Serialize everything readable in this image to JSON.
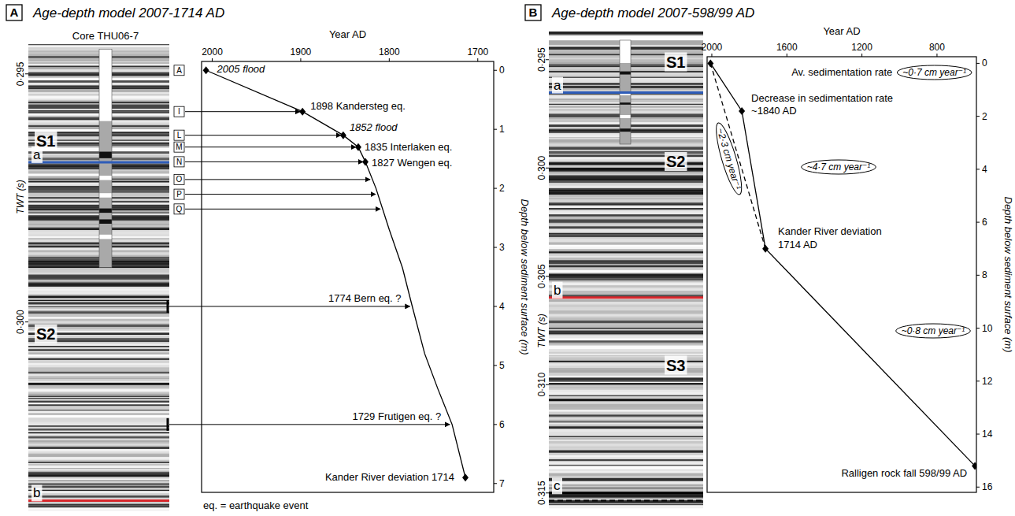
{
  "chart_data": [
    {
      "type": "line",
      "panel_label": "A",
      "title": "Age-depth model 2007-1714 AD",
      "x_label": "Year AD",
      "y_label": "Depth below sediment surface (m)",
      "xlim": [
        2012,
        1682
      ],
      "xticks": [
        2000,
        1900,
        1800,
        1700
      ],
      "ylim": [
        -0.15,
        7.15
      ],
      "yticks": [
        0,
        1,
        2,
        3,
        4,
        5,
        6,
        7
      ],
      "series": [
        {
          "type": "line",
          "color": "#000000",
          "line_style": "solid",
          "x": [
            2007,
            1898,
            1852,
            1835,
            1827,
            1815,
            1800,
            1785,
            1774,
            1760,
            1745,
            1729,
            1714
          ],
          "values": [
            0,
            0.7,
            1.1,
            1.3,
            1.55,
            2.0,
            2.7,
            3.35,
            4.0,
            4.8,
            5.4,
            6.0,
            6.9
          ]
        },
        {
          "type": "scatter",
          "color": "#000000",
          "marker": "diamond",
          "x": [
            2007,
            1898,
            1852,
            1835,
            1827,
            1714
          ],
          "values": [
            0,
            0.7,
            1.1,
            1.3,
            1.55,
            6.9
          ]
        }
      ],
      "annotations": [
        {
          "lines": [
            "2005 flood"
          ],
          "x": 2007,
          "y": 0,
          "italic": true
        },
        {
          "lines": [
            "1898 Kandersteg eq."
          ],
          "x": 1898,
          "y": 0.7
        },
        {
          "lines": [
            "1852 flood"
          ],
          "x": 1852,
          "y": 1.1,
          "italic": true
        },
        {
          "lines": [
            "1835 Interlaken eq."
          ],
          "x": 1835,
          "y": 1.3
        },
        {
          "lines": [
            "1827 Wengen eq."
          ],
          "x": 1827,
          "y": 1.55
        },
        {
          "lines": [
            "1774 Bern eq. ?"
          ],
          "x": 1774,
          "y": 4.0
        },
        {
          "lines": [
            "1729 Frutigen eq. ?"
          ],
          "x": 1729,
          "y": 6.0
        },
        {
          "lines": [
            "Kander River deviation 1714"
          ],
          "x": 1714,
          "y": 6.9
        }
      ],
      "core_levels": [
        {
          "label": "A",
          "depth": 0
        },
        {
          "label": "I",
          "depth": 0.7
        },
        {
          "label": "L",
          "depth": 1.1
        },
        {
          "label": "M",
          "depth": 1.3
        },
        {
          "label": "N",
          "depth": 1.55
        },
        {
          "label": "O",
          "depth": 1.85
        },
        {
          "label": "P",
          "depth": 2.1
        },
        {
          "label": "Q",
          "depth": 2.35
        }
      ],
      "profile": {
        "y_label": "TWT (s)",
        "ylim": [
          0.2944,
          0.3038
        ],
        "yticks": [
          {
            "value": 0.295,
            "label": "0·295"
          },
          {
            "value": 0.3,
            "label": "0·300"
          }
        ],
        "core": "Core THU06-7",
        "core_range": [
          0.2945,
          0.2989
        ],
        "units": [
          {
            "label": "S1",
            "y": 0.29635
          },
          {
            "label": "S2",
            "y": 0.30024
          }
        ],
        "horizons": [
          {
            "label": "a",
            "y": 0.29678,
            "color": "#2e5cb8"
          },
          {
            "label": "b",
            "y": 0.3036,
            "color": "#d7262b"
          }
        ]
      },
      "footnote": "eq. = earthquake event"
    },
    {
      "type": "line",
      "panel_label": "B",
      "title": "Age-depth model 2007-598/99 AD",
      "x_label": "Year AD",
      "y_label": "Depth below sediment surface (m)",
      "xlim": [
        2025,
        590
      ],
      "xticks": [
        2000,
        1600,
        1200,
        800
      ],
      "ylim": [
        -0.25,
        16.2
      ],
      "yticks": [
        0,
        2,
        4,
        6,
        8,
        10,
        12,
        14,
        16
      ],
      "series": [
        {
          "type": "line",
          "color": "#000000",
          "marker": "diamond",
          "line_style": "solid",
          "x": [
            2007,
            1840,
            1714,
            598
          ],
          "values": [
            0,
            1.8,
            7,
            15.2
          ]
        },
        {
          "type": "line",
          "color": "#000000",
          "line_style": "dashed",
          "x": [
            2007,
            1714
          ],
          "values": [
            0,
            7
          ]
        }
      ],
      "annotations": [
        {
          "lines": [
            "Decrease in sedimentation rate",
            "~1840 AD"
          ],
          "x": 1840,
          "y": 1.8
        },
        {
          "lines": [
            "Kander River deviation",
            "1714 AD"
          ],
          "x": 1714,
          "y": 7
        },
        {
          "lines": [
            "Ralligen rock fall 598/99 AD"
          ],
          "x": 598,
          "y": 15.2
        }
      ],
      "rate_caption": "Av. sedimentation rate",
      "rate_labels": [
        "~0·7 cm year⁻¹",
        "~4·7 cm year⁻¹",
        "~0·8 cm year⁻¹",
        "~2·3 cm year⁻¹"
      ],
      "profile": {
        "y_label": "TWT (s)",
        "ylim": [
          0.2937,
          0.3157
        ],
        "yticks": [
          {
            "value": 0.295,
            "label": "0·295"
          },
          {
            "value": 0.3,
            "label": "0·300"
          },
          {
            "value": 0.305,
            "label": "0·305"
          },
          {
            "value": 0.31,
            "label": "0·310"
          },
          {
            "value": 0.315,
            "label": "0·315"
          }
        ],
        "core_range": [
          0.2941,
          0.2989
        ],
        "units": [
          {
            "label": "S1",
            "y": 0.2951
          },
          {
            "label": "S2",
            "y": 0.2997
          },
          {
            "label": "S3",
            "y": 0.3091
          }
        ],
        "horizons": [
          {
            "label": "a",
            "y": 0.29652,
            "color": "#2e5cb8"
          },
          {
            "label": "b",
            "y": 0.30598,
            "color": "#d7262b"
          },
          {
            "label": "c",
            "y": 0.31502,
            "color": "#000000"
          },
          {
            "y": 0.31535,
            "color": "#000000",
            "line_style": "dashed"
          }
        ]
      }
    }
  ]
}
